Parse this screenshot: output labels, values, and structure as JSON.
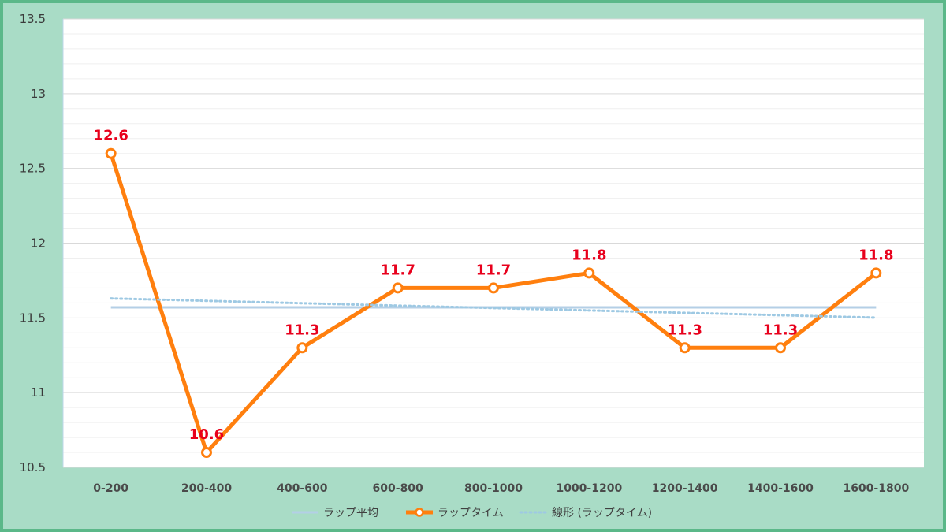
{
  "chart_data": {
    "type": "line",
    "categories": [
      "0-200",
      "200-400",
      "400-600",
      "600-800",
      "800-1000",
      "1000-1200",
      "1200-1400",
      "1400-1600",
      "1600-1800"
    ],
    "series": [
      {
        "name": "ラップ平均",
        "values": [
          11.57,
          11.57,
          11.57,
          11.57,
          11.57,
          11.57,
          11.57,
          11.57,
          11.57
        ],
        "color": "#b4cfe6",
        "style": "solid"
      },
      {
        "name": "ラップタイム",
        "values": [
          12.6,
          10.6,
          11.3,
          11.7,
          11.7,
          11.8,
          11.3,
          11.3,
          11.8
        ],
        "color": "#ff7f0e",
        "style": "solid-markers",
        "data_labels": [
          "12.6",
          "10.6",
          "11.3",
          "11.7",
          "11.7",
          "11.8",
          "11.3",
          "11.3",
          "11.8"
        ]
      },
      {
        "name": "線形 (ラップタイム)",
        "values": [
          11.63,
          11.614,
          11.598,
          11.582,
          11.566,
          11.55,
          11.534,
          11.518,
          11.502
        ],
        "color": "#9ec9e3",
        "style": "dotted"
      }
    ],
    "y_ticks": [
      "10.5",
      "11",
      "11.5",
      "12",
      "12.5",
      "13",
      "13.5"
    ],
    "ylim": [
      10.5,
      13.5
    ],
    "grid": true,
    "legend_position": "bottom",
    "data_label_color": "#e8001c"
  }
}
